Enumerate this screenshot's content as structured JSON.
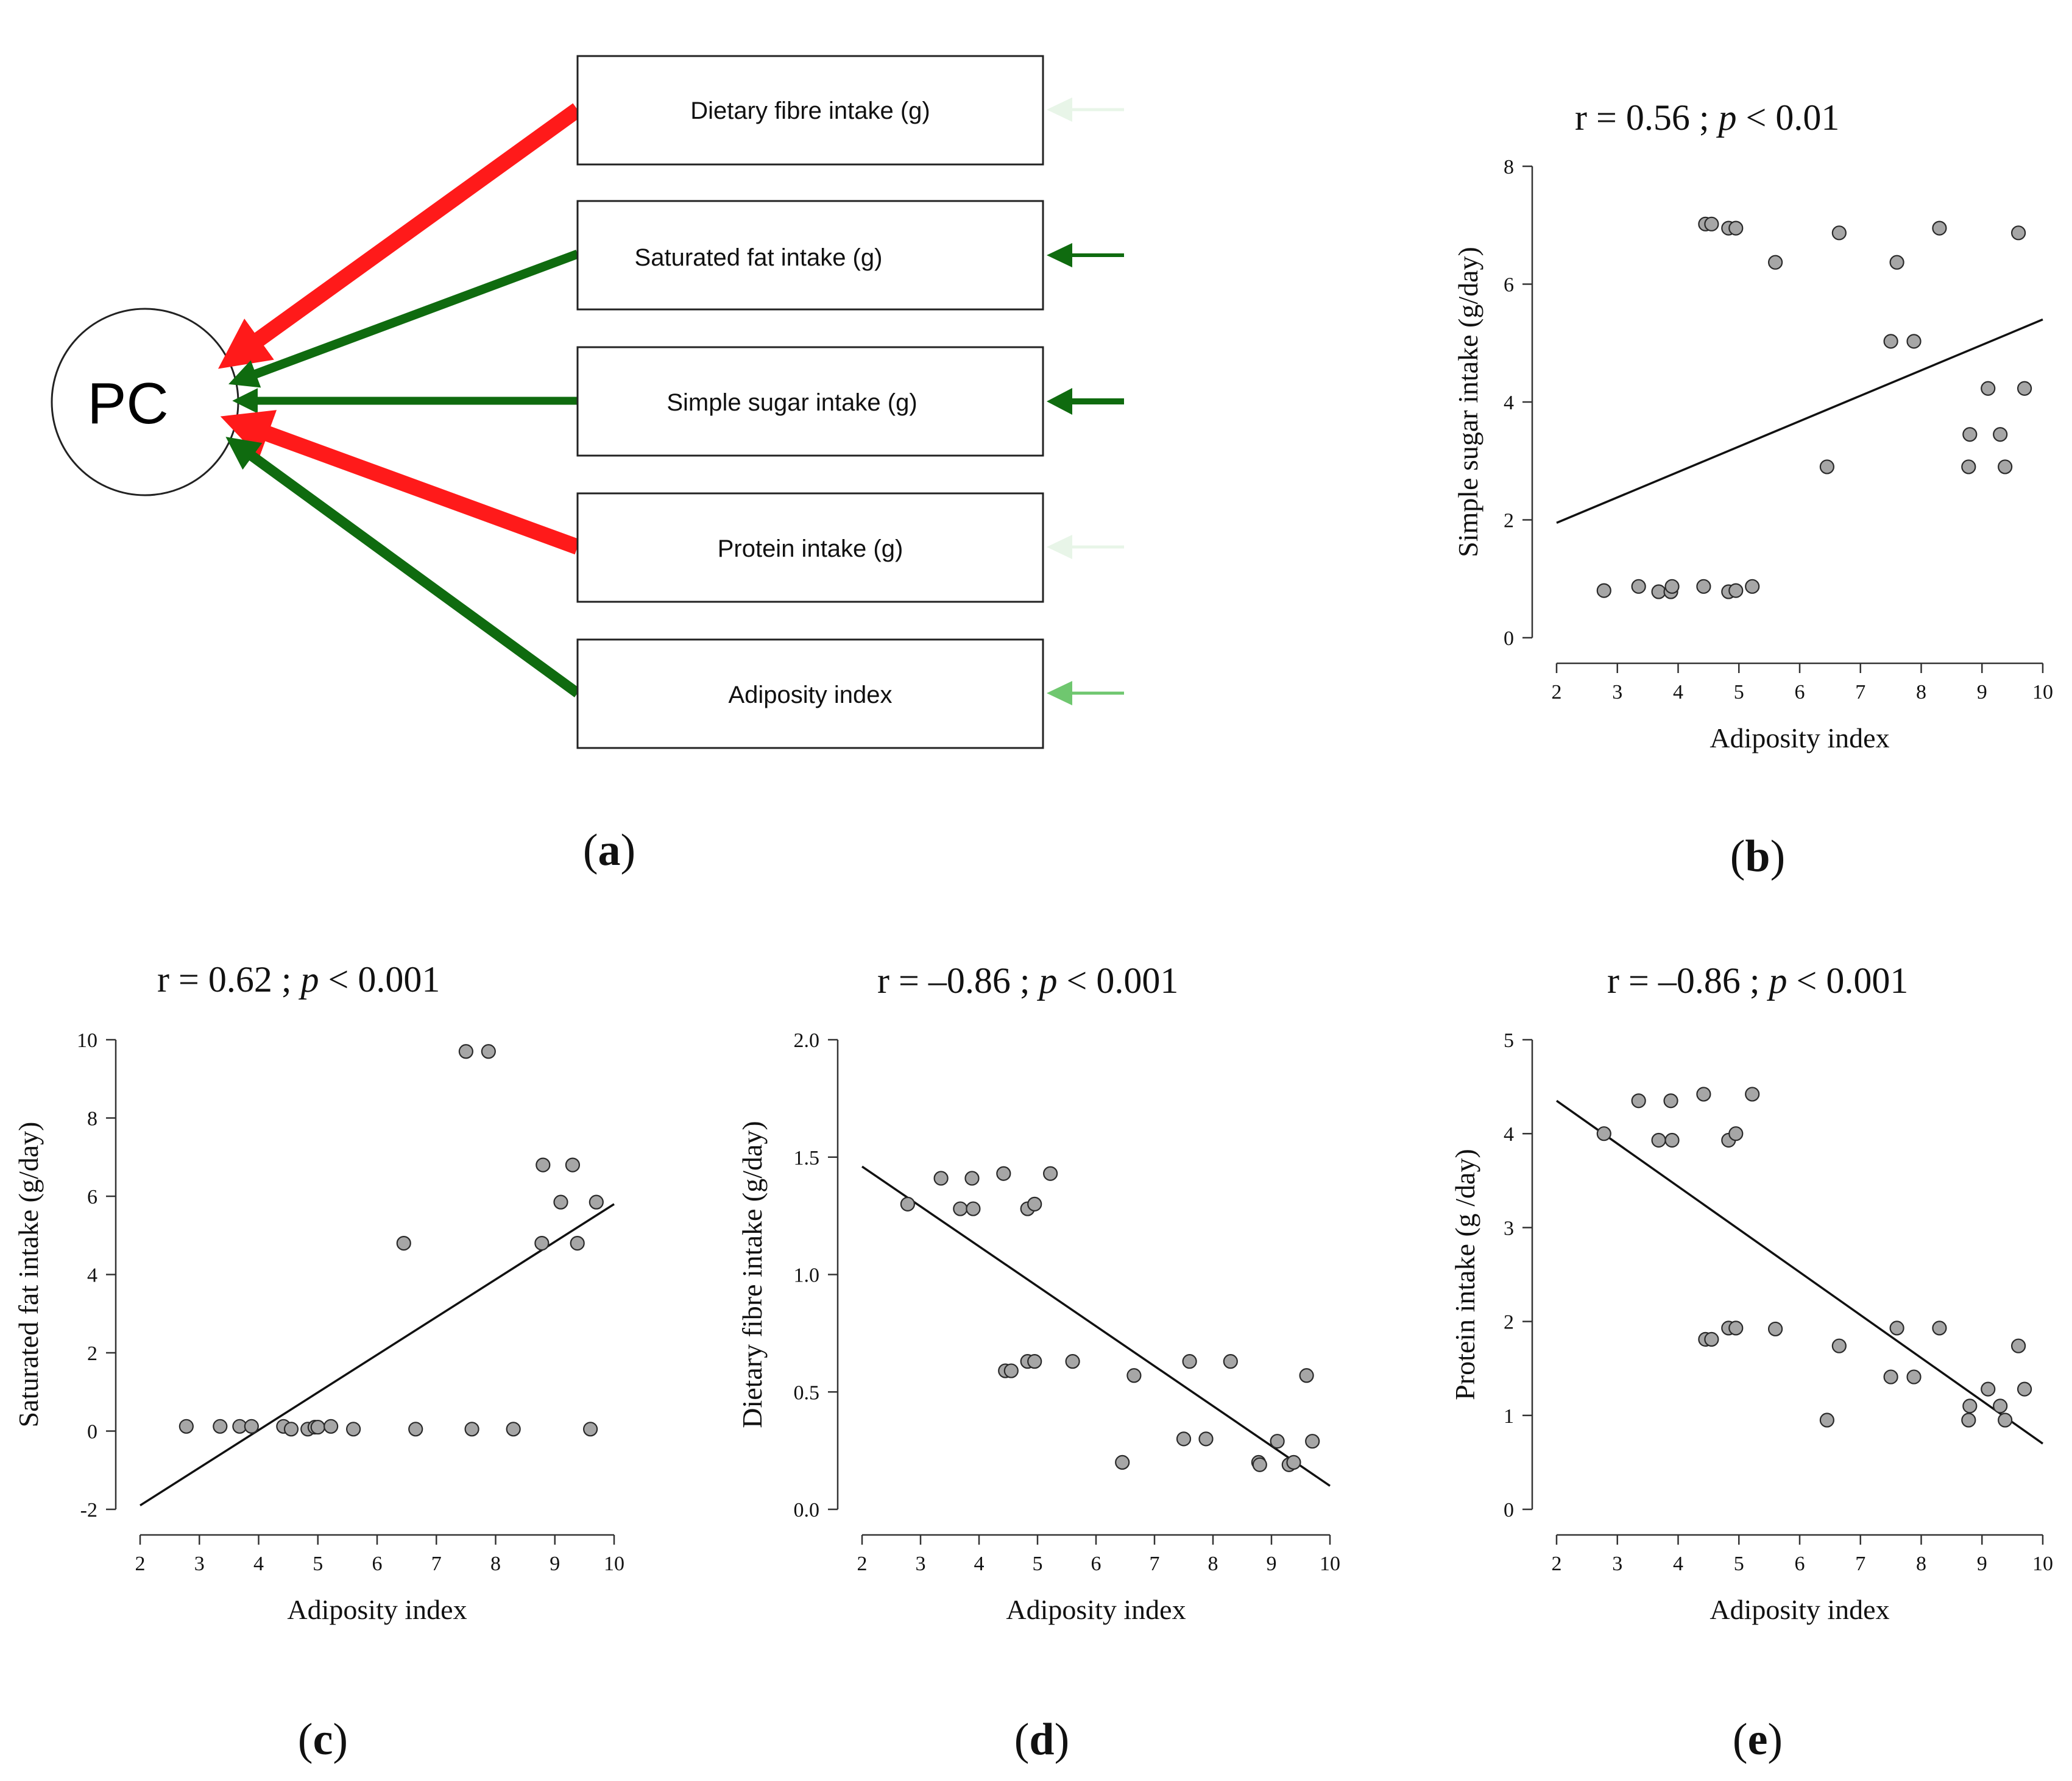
{
  "diagram": {
    "center_label": "PC",
    "boxes": [
      {
        "label": "Dietary fibre intake (g)",
        "link_color": "#ff1a1a",
        "in_arrow_color": "#e8f5e8"
      },
      {
        "label": "Saturated fat intake (g)",
        "link_color": "#0f6b0f",
        "in_arrow_color": "#0f6b0f"
      },
      {
        "label": "Simple sugar intake (g)",
        "link_color": "#0f6b0f",
        "in_arrow_color": "#0f6b0f"
      },
      {
        "label": "Protein intake (g)",
        "link_color": "#ff1a1a",
        "in_arrow_color": "#e8f5e8"
      },
      {
        "label": "Adiposity index",
        "link_color": "#0f6b0f",
        "in_arrow_color": "#6fc76f"
      }
    ],
    "panel_label": "a"
  },
  "chart_data": [
    {
      "panel": "b",
      "type": "scatter",
      "title_r": "r = 0.56 ; ",
      "title_p": "p",
      "title_rest": " < 0.01",
      "xlabel": "Adiposity index",
      "ylabel": "Simple sugar intake (g/day)",
      "xlim": [
        2,
        10
      ],
      "ylim": [
        0,
        8
      ],
      "xticks": [
        2,
        3,
        4,
        5,
        6,
        7,
        8,
        9,
        10
      ],
      "xtick_labels": [
        "2",
        "3",
        "4",
        "5",
        "6",
        "7",
        "8",
        "9",
        "10"
      ],
      "yticks": [
        0,
        2,
        4,
        6,
        8
      ],
      "ytick_labels": [
        "0",
        "2",
        "4",
        "6",
        "8"
      ],
      "x": [
        2.78,
        3.35,
        3.68,
        3.88,
        3.9,
        4.42,
        4.83,
        4.95,
        5.22,
        4.45,
        4.55,
        4.83,
        4.95,
        5.6,
        6.45,
        6.65,
        7.5,
        7.6,
        7.88,
        8.3,
        8.78,
        8.8,
        9.1,
        9.3,
        9.38,
        9.6,
        9.7
      ],
      "y": [
        0.8,
        0.87,
        0.78,
        0.78,
        0.87,
        0.87,
        0.78,
        0.8,
        0.87,
        7.02,
        7.02,
        6.95,
        6.95,
        6.37,
        2.9,
        6.87,
        5.03,
        6.37,
        5.03,
        6.95,
        2.9,
        3.45,
        4.23,
        3.45,
        2.9,
        6.87,
        4.23
      ],
      "fit": {
        "x": [
          2,
          10
        ],
        "y": [
          1.95,
          5.4
        ]
      }
    },
    {
      "panel": "c",
      "type": "scatter",
      "title_r": "r = 0.62 ; ",
      "title_p": "p",
      "title_rest": " < 0.001",
      "xlabel": "Adiposity index",
      "ylabel": "Saturated fat intake (g/day)",
      "xlim": [
        2,
        10
      ],
      "ylim": [
        -2,
        10
      ],
      "xticks": [
        2,
        3,
        4,
        5,
        6,
        7,
        8,
        9,
        10
      ],
      "xtick_labels": [
        "2",
        "3",
        "4",
        "5",
        "6",
        "7",
        "8",
        "9",
        "10"
      ],
      "yticks": [
        -2,
        0,
        2,
        4,
        6,
        8,
        10
      ],
      "ytick_labels": [
        "-2",
        "0",
        "2",
        "4",
        "6",
        "8",
        "10"
      ],
      "x": [
        2.78,
        3.35,
        3.68,
        3.88,
        4.42,
        4.55,
        4.83,
        4.95,
        5.0,
        5.22,
        5.6,
        6.45,
        6.65,
        7.5,
        7.6,
        7.88,
        8.3,
        8.78,
        8.8,
        9.1,
        9.3,
        9.38,
        9.6,
        9.7
      ],
      "y": [
        0.12,
        0.12,
        0.12,
        0.12,
        0.12,
        0.05,
        0.05,
        0.1,
        0.1,
        0.12,
        0.05,
        4.8,
        0.05,
        9.7,
        0.05,
        9.7,
        0.05,
        4.8,
        6.8,
        5.85,
        6.8,
        4.8,
        0.05,
        5.85
      ],
      "fit": {
        "x": [
          2,
          10
        ],
        "y": [
          -1.9,
          5.8
        ]
      }
    },
    {
      "panel": "d",
      "type": "scatter",
      "title_r": "r = –0.86 ; ",
      "title_p": "p",
      "title_rest": " < 0.001",
      "xlabel": "Adiposity index",
      "ylabel": "Dietary fibre intake (g/day)",
      "xlim": [
        2,
        10
      ],
      "ylim": [
        0,
        2
      ],
      "xticks": [
        2,
        3,
        4,
        5,
        6,
        7,
        8,
        9,
        10
      ],
      "xtick_labels": [
        "2",
        "3",
        "4",
        "5",
        "6",
        "7",
        "8",
        "9",
        "10"
      ],
      "yticks": [
        0,
        0.5,
        1,
        1.5,
        2
      ],
      "ytick_labels": [
        "0.0",
        "0.5",
        "1.0",
        "1.5",
        "2.0"
      ],
      "x": [
        2.78,
        3.35,
        3.68,
        3.88,
        3.9,
        4.42,
        4.83,
        4.95,
        5.22,
        4.45,
        4.55,
        4.83,
        4.95,
        5.6,
        6.45,
        6.65,
        7.5,
        7.6,
        7.88,
        8.3,
        8.78,
        8.8,
        9.1,
        9.3,
        9.38,
        9.6,
        9.7
      ],
      "y": [
        1.3,
        1.41,
        1.28,
        1.41,
        1.28,
        1.43,
        1.28,
        1.3,
        1.43,
        0.59,
        0.59,
        0.63,
        0.63,
        0.63,
        0.2,
        0.57,
        0.3,
        0.63,
        0.3,
        0.63,
        0.2,
        0.19,
        0.29,
        0.19,
        0.2,
        0.57,
        0.29
      ],
      "fit": {
        "x": [
          2,
          10
        ],
        "y": [
          1.46,
          0.1
        ]
      }
    },
    {
      "panel": "e",
      "type": "scatter",
      "title_r": "r = –0.86 ; ",
      "title_p": "p",
      "title_rest": " < 0.001",
      "xlabel": "Adiposity index",
      "ylabel": "Protein intake (g /day)",
      "xlim": [
        2,
        10
      ],
      "ylim": [
        0,
        5
      ],
      "xticks": [
        2,
        3,
        4,
        5,
        6,
        7,
        8,
        9,
        10
      ],
      "xtick_labels": [
        "2",
        "3",
        "4",
        "5",
        "6",
        "7",
        "8",
        "9",
        "10"
      ],
      "yticks": [
        0,
        1,
        2,
        3,
        4,
        5
      ],
      "ytick_labels": [
        "0",
        "1",
        "2",
        "3",
        "4",
        "5"
      ],
      "x": [
        2.78,
        3.35,
        3.68,
        3.88,
        3.9,
        4.42,
        4.83,
        4.95,
        5.22,
        4.45,
        4.55,
        4.83,
        4.95,
        5.6,
        6.45,
        6.65,
        7.5,
        7.6,
        7.88,
        8.3,
        8.78,
        8.8,
        9.1,
        9.3,
        9.38,
        9.6,
        9.7
      ],
      "y": [
        4.0,
        4.35,
        3.93,
        4.35,
        3.93,
        4.42,
        3.93,
        4.0,
        4.42,
        1.81,
        1.81,
        1.93,
        1.93,
        1.92,
        0.95,
        1.74,
        1.41,
        1.93,
        1.41,
        1.93,
        0.95,
        1.1,
        1.28,
        1.1,
        0.95,
        1.74,
        1.28
      ],
      "fit": {
        "x": [
          2,
          10
        ],
        "y": [
          4.35,
          0.7
        ]
      }
    }
  ]
}
